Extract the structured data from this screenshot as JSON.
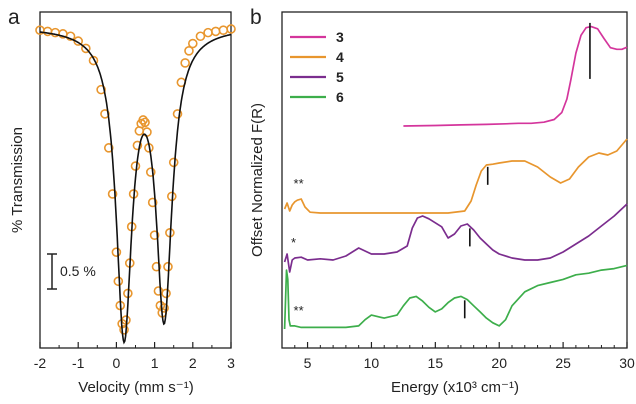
{
  "panels": {
    "a": {
      "letter": "a"
    },
    "b": {
      "letter": "b"
    }
  },
  "chart_data": [
    {
      "panel": "a",
      "type": "scatter",
      "xlabel": "Velocity (mm s⁻¹)",
      "ylabel": "% Transmission",
      "xlim": [
        -2,
        3
      ],
      "x_ticks": [
        "-2",
        "-1",
        "0",
        "1",
        "2",
        "3"
      ],
      "y_ticks_labeled": false,
      "scale_bar": {
        "label": "0.5 %",
        "value_percent": 0.5
      },
      "series": [
        {
          "kind": "experimental points",
          "marker": "open-circle",
          "color": "#E8962E",
          "x": [
            -2.0,
            -1.8,
            -1.6,
            -1.4,
            -1.2,
            -1.0,
            -0.8,
            -0.6,
            -0.4,
            -0.3,
            -0.2,
            -0.1,
            0.0,
            0.05,
            0.1,
            0.15,
            0.2,
            0.25,
            0.3,
            0.35,
            0.4,
            0.45,
            0.5,
            0.55,
            0.6,
            0.65,
            0.7,
            0.75,
            0.8,
            0.85,
            0.9,
            0.95,
            1.0,
            1.05,
            1.1,
            1.15,
            1.2,
            1.25,
            1.3,
            1.35,
            1.4,
            1.45,
            1.5,
            1.6,
            1.7,
            1.8,
            1.9,
            2.0,
            2.2,
            2.4,
            2.6,
            2.8,
            3.0
          ],
          "y": [
            -0.03,
            -0.04,
            -0.05,
            -0.06,
            -0.08,
            -0.12,
            -0.18,
            -0.28,
            -0.52,
            -0.72,
            -1.0,
            -1.38,
            -1.86,
            -2.1,
            -2.3,
            -2.45,
            -2.5,
            -2.42,
            -2.2,
            -1.95,
            -1.65,
            -1.38,
            -1.15,
            -0.98,
            -0.86,
            -0.8,
            -0.77,
            -0.79,
            -0.87,
            -1.0,
            -1.2,
            -1.45,
            -1.72,
            -1.98,
            -2.18,
            -2.3,
            -2.36,
            -2.32,
            -2.2,
            -1.98,
            -1.7,
            -1.4,
            -1.12,
            -0.72,
            -0.46,
            -0.3,
            -0.2,
            -0.14,
            -0.08,
            -0.05,
            -0.04,
            -0.03,
            -0.02
          ]
        },
        {
          "kind": "fit",
          "color": "#111111",
          "doublet": {
            "center_1": 0.2,
            "center_2": 1.25,
            "depth_1": 2.48,
            "depth_2": 2.32,
            "hwhm": 0.25
          }
        }
      ]
    },
    {
      "panel": "b",
      "type": "line",
      "xlabel": "Energy (x10³ cm⁻¹)",
      "ylabel": "Offset Normalized F(R)",
      "xlim": [
        3,
        30
      ],
      "x_ticks": [
        "5",
        "10",
        "15",
        "20",
        "25",
        "30"
      ],
      "x_tick_values": [
        5,
        10,
        15,
        20,
        25,
        30
      ],
      "legend_position": "top-left",
      "series": [
        {
          "name": "3",
          "color": "#D4359C",
          "x": [
            12.5,
            15,
            17,
            19,
            20.5,
            21.5,
            22.5,
            23.5,
            24.3,
            24.9,
            25.3,
            25.6,
            26.0,
            26.4,
            26.8,
            27.2,
            27.7,
            28.2,
            28.7,
            29.2,
            29.6,
            30.0
          ],
          "y": [
            0.0,
            0.01,
            0.02,
            0.03,
            0.04,
            0.05,
            0.05,
            0.07,
            0.12,
            0.25,
            0.5,
            0.85,
            1.35,
            1.68,
            1.82,
            1.84,
            1.8,
            1.62,
            1.45,
            1.42,
            1.42,
            1.46
          ]
        },
        {
          "name": "4",
          "color": "#E8962E",
          "x": [
            3.2,
            3.4,
            3.6,
            3.8,
            4.0,
            4.2,
            4.5,
            4.8,
            5.2,
            6,
            8,
            10,
            12,
            14,
            16,
            17.3,
            17.8,
            18.2,
            18.6,
            19.0,
            19.5,
            20.0,
            21.0,
            22.0,
            23.0,
            24.0,
            24.8,
            25.5,
            26.2,
            27.0,
            27.8,
            28.5,
            29.2,
            30.0
          ],
          "y": [
            0.1,
            0.25,
            0.05,
            0.2,
            0.28,
            0.32,
            0.35,
            0.15,
            0.02,
            0.0,
            0.0,
            0.0,
            0.0,
            0.0,
            0.0,
            0.05,
            0.3,
            0.7,
            1.05,
            1.2,
            1.22,
            1.25,
            1.3,
            1.3,
            1.15,
            0.9,
            0.75,
            0.85,
            1.15,
            1.4,
            1.5,
            1.45,
            1.55,
            1.85
          ]
        },
        {
          "name": "5",
          "color": "#7B2D8E",
          "x": [
            3.2,
            3.4,
            3.6,
            3.8,
            4.0,
            4.5,
            5.0,
            6.0,
            7.0,
            8.0,
            9.0,
            10.0,
            11.0,
            12.0,
            12.8,
            13.2,
            13.6,
            14.0,
            14.5,
            15.0,
            15.5,
            16.0,
            16.5,
            17.0,
            17.5,
            18.0,
            18.5,
            19.0,
            19.5,
            20.0,
            21.0,
            22.0,
            23.0,
            24.0,
            25.0,
            26.0,
            27.0,
            28.0,
            29.0,
            30.0
          ],
          "y": [
            0.0,
            0.2,
            -0.25,
            0.05,
            0.1,
            0.12,
            0.05,
            0.08,
            0.05,
            0.15,
            0.35,
            0.2,
            0.2,
            0.25,
            0.4,
            0.85,
            1.1,
            1.15,
            1.08,
            0.98,
            0.88,
            0.6,
            0.7,
            0.9,
            0.95,
            0.8,
            0.6,
            0.45,
            0.3,
            0.2,
            0.1,
            0.05,
            0.05,
            0.1,
            0.25,
            0.45,
            0.65,
            0.9,
            1.15,
            1.45
          ]
        },
        {
          "name": "6",
          "color": "#3DAE4B",
          "x": [
            3.2,
            3.35,
            3.45,
            3.55,
            3.65,
            3.8,
            4.0,
            4.5,
            5.0,
            6.0,
            7.0,
            8.0,
            9.0,
            9.5,
            10.0,
            11.0,
            12.0,
            12.5,
            13.0,
            13.5,
            14.0,
            14.5,
            15.0,
            15.5,
            16.0,
            16.5,
            17.0,
            17.5,
            18.0,
            18.5,
            19.0,
            19.5,
            20.0,
            20.5,
            21.0,
            22.0,
            23.0,
            24.0,
            25.0,
            26.0,
            27.0,
            28.0,
            29.0,
            30.0
          ],
          "y": [
            0.0,
            1.9,
            1.6,
            0.3,
            0.1,
            0.1,
            0.1,
            0.05,
            0.05,
            0.05,
            0.05,
            0.05,
            0.1,
            0.3,
            0.45,
            0.35,
            0.45,
            0.75,
            1.0,
            1.05,
            0.9,
            0.7,
            0.55,
            0.65,
            0.85,
            1.0,
            1.05,
            0.95,
            0.75,
            0.55,
            0.35,
            0.2,
            0.1,
            0.3,
            0.75,
            1.2,
            1.4,
            1.5,
            1.6,
            1.75,
            1.8,
            1.9,
            1.95,
            2.05
          ]
        }
      ],
      "markers": [
        {
          "series": "3",
          "x": 27.1
        },
        {
          "series": "4",
          "x": 19.1
        },
        {
          "series": "5",
          "x": 17.7
        },
        {
          "series": "6",
          "x": 17.3
        }
      ],
      "annotations": [
        {
          "series": "4",
          "text": "**",
          "x": 4.3
        },
        {
          "series": "5",
          "text": "*",
          "x": 3.9
        },
        {
          "series": "6",
          "text": "**",
          "x": 4.3
        }
      ]
    }
  ]
}
